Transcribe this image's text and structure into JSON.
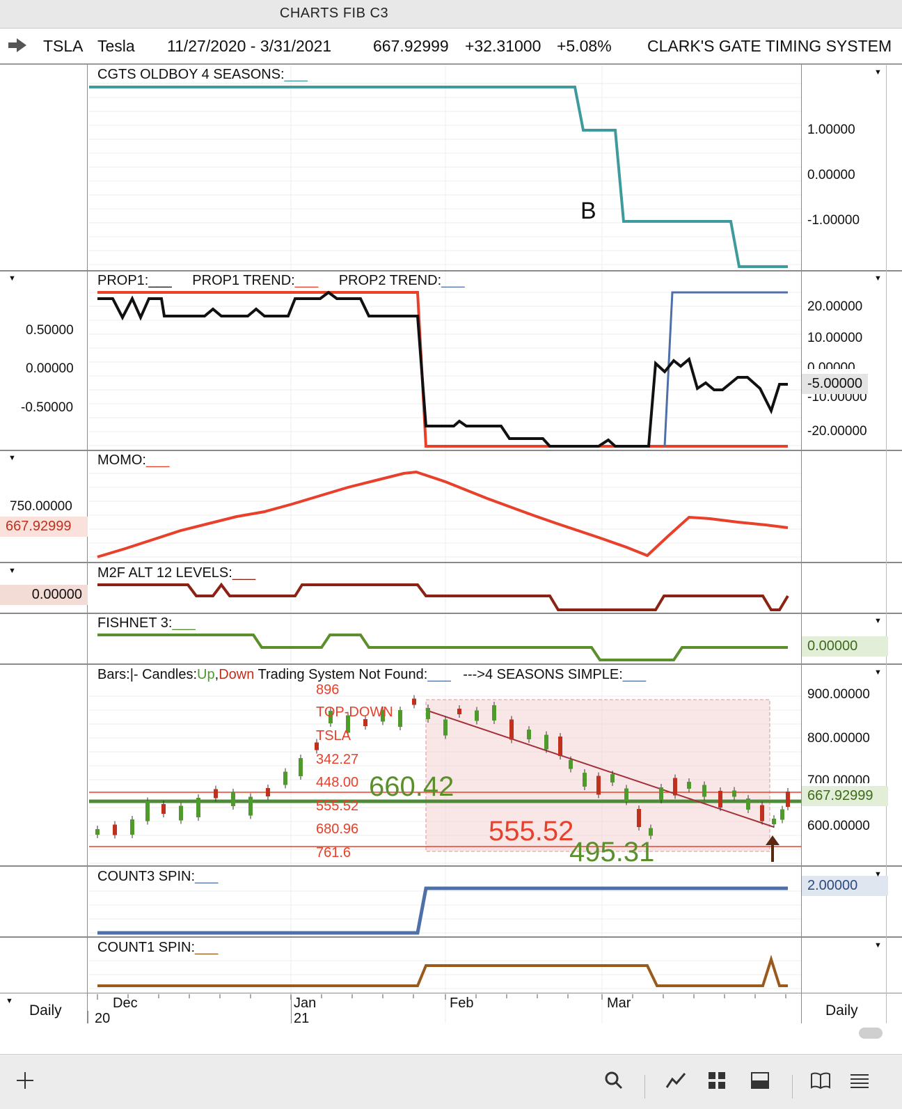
{
  "window": {
    "title": "CHARTS FIB C3"
  },
  "info": {
    "symbol": "TSLA",
    "name": "Tesla",
    "range": "11/27/2020 - 3/31/2021",
    "price": "667.92999",
    "change": "+32.31000",
    "change_pct": "+5.08%",
    "system": "CLARK'S GATE TIMING SYSTEM"
  },
  "panels": {
    "p1": {
      "label": "CGTS OLDBOY 4 SEASONS:",
      "legend": "___",
      "marker": "B",
      "right_axis": [
        "1.00000",
        "0.00000",
        "-1.00000"
      ]
    },
    "p2": {
      "label_a": "PROP1:",
      "legend_a": "___",
      "label_b": "PROP1 TREND:",
      "legend_b": "___",
      "label_c": "PROP2 TREND:",
      "legend_c": "___",
      "left_axis": [
        "0.50000",
        "0.00000",
        "-0.50000"
      ],
      "right_axis": [
        "20.00000",
        "10.00000",
        "0.00000",
        "-10.00000",
        "-20.00000"
      ],
      "right_badge": "-5.00000"
    },
    "p3": {
      "label": "MOMO:",
      "legend": "___",
      "left_axis": "750.00000",
      "left_badge": "667.92999"
    },
    "p4": {
      "label": "M2F ALT 12 LEVELS:",
      "legend": "___",
      "left_badge": "0.00000"
    },
    "p5": {
      "label": "FISHNET 3:",
      "legend": "___",
      "right_badge": "0.00000"
    },
    "p6": {
      "label_bars": "Bars:",
      "label_sep": "|- Candles:",
      "label_up": "Up",
      "label_comma": ",",
      "label_down": "Down",
      "label_rest": " Trading System Not Found:",
      "legend": "___",
      "label_seasons": "--->4 SEASONS SIMPLE:",
      "legend2": "___",
      "right_axis": [
        "900.00000",
        "800.00000",
        "700.00000",
        "600.00000"
      ],
      "right_badge": "667.92999",
      "fib_text": [
        "896",
        "TOP-DOWN",
        "TSLA",
        "342.27",
        "448.00",
        "555.52",
        "680.96",
        "761.6"
      ],
      "big_green": "660.42",
      "big_red": "555.52",
      "big_green2": "495.31"
    },
    "p7": {
      "label": "COUNT3 SPIN:",
      "legend": "___",
      "right_badge": "2.00000"
    },
    "p8": {
      "label": "COUNT1 SPIN:",
      "legend": "___"
    }
  },
  "xaxis": {
    "months": [
      "Dec",
      "Jan",
      "Feb",
      "Mar"
    ],
    "years": [
      "20",
      "21"
    ],
    "left_period": "Daily",
    "right_period": "Daily"
  },
  "colors": {
    "teal": "#3e9a9c",
    "red": "#e8402a",
    "black": "#111111",
    "blue": "#4f6fa8",
    "darkred": "#8b2214",
    "green": "#5a8f2b",
    "brown": "#9a5a1c",
    "price_green": "#4e8a3a"
  }
}
